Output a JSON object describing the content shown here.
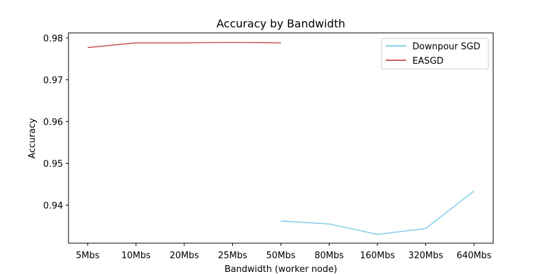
{
  "chart_data": {
    "type": "line",
    "title": "Accuracy by Bandwidth",
    "xlabel": "Bandwidth (worker node)",
    "ylabel": "Accuracy",
    "categories": [
      "5Mbs",
      "10Mbs",
      "20Mbs",
      "25Mbs",
      "50Mbs",
      "80Mbs",
      "160Mbs",
      "320Mbs",
      "640Mbs"
    ],
    "ylim": [
      0.9309,
      0.9812
    ],
    "yticks": [
      0.94,
      0.95,
      0.96,
      0.97,
      0.98
    ],
    "ytick_labels": [
      "0.94",
      "0.95",
      "0.96",
      "0.97",
      "0.98"
    ],
    "grid": false,
    "legend_position": "top-right",
    "series": [
      {
        "name": "Downpour SGD",
        "color": "#87ceeb",
        "values": [
          null,
          null,
          null,
          null,
          0.9362,
          0.9355,
          0.933,
          0.9344,
          0.9434
        ]
      },
      {
        "name": "EASGD",
        "color": "#cd5c5c",
        "values": [
          0.9777,
          0.9788,
          0.9788,
          0.9789,
          0.9788,
          null,
          null,
          null,
          null
        ]
      }
    ]
  }
}
